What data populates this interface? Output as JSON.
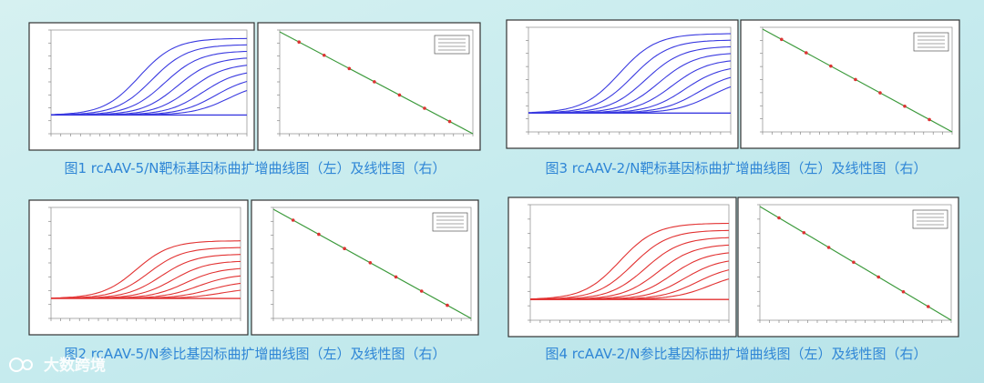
{
  "figures": [
    {
      "caption": "图1 rcAAV-5/N靶标基因标曲扩增曲线图（左）及线性图（右）"
    },
    {
      "caption": "图3 rcAAV-2/N靶标基因标曲扩增曲线图（左）及线性图（右）"
    },
    {
      "caption": "图2 rcAAV-5/N参比基因标曲扩增曲线图（左）及线性图（右）"
    },
    {
      "caption": "图4 rcAAV-2/N参比基因标曲扩增曲线图（左）及线性图（右）"
    }
  ],
  "watermark": "大数跨境"
}
